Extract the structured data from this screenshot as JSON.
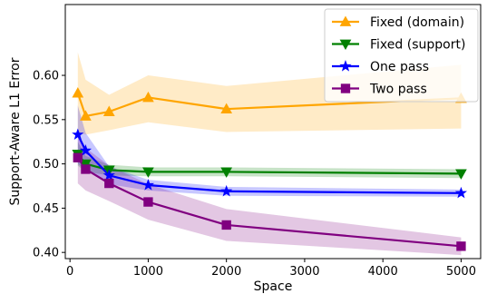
{
  "chart_data": {
    "type": "line",
    "title": "",
    "xlabel": "Space",
    "ylabel": "Support-Aware L1 Error",
    "xlim": [
      -60,
      5250
    ],
    "ylim": [
      0.393,
      0.68
    ],
    "xticks": [
      0,
      1000,
      2000,
      3000,
      4000,
      5000
    ],
    "xtick_labels": [
      "0",
      "1000",
      "2000",
      "3000",
      "4000",
      "5000"
    ],
    "yticks": [
      0.4,
      0.45,
      0.5,
      0.55,
      0.6
    ],
    "ytick_labels": [
      "0.40",
      "0.45",
      "0.50",
      "0.55",
      "0.60"
    ],
    "grid": false,
    "legend_position": "top-right",
    "x": [
      100,
      200,
      500,
      1000,
      2000,
      5000
    ],
    "series": [
      {
        "name": "Fixed (domain)",
        "color": "#ffa500",
        "marker": "triangle-up",
        "values": [
          0.58,
          0.554,
          0.559,
          0.575,
          0.562,
          0.574
        ],
        "lower": [
          0.535,
          0.533,
          0.538,
          0.547,
          0.536,
          0.54
        ],
        "upper": [
          0.626,
          0.595,
          0.578,
          0.6,
          0.588,
          0.612
        ]
      },
      {
        "name": "Fixed (support)",
        "color": "#008000",
        "marker": "triangle-down",
        "values": [
          0.511,
          0.5,
          0.493,
          0.491,
          0.491,
          0.489
        ],
        "lower": [
          0.498,
          0.491,
          0.487,
          0.486,
          0.486,
          0.484
        ],
        "upper": [
          0.525,
          0.509,
          0.499,
          0.496,
          0.496,
          0.494
        ]
      },
      {
        "name": "One pass",
        "color": "#0000ff",
        "marker": "star",
        "values": [
          0.533,
          0.515,
          0.487,
          0.476,
          0.469,
          0.467
        ],
        "lower": [
          0.5,
          0.493,
          0.477,
          0.47,
          0.464,
          0.463
        ],
        "upper": [
          0.566,
          0.535,
          0.497,
          0.482,
          0.474,
          0.471
        ]
      },
      {
        "name": "Two pass",
        "color": "#800080",
        "marker": "square",
        "values": [
          0.507,
          0.494,
          0.478,
          0.457,
          0.431,
          0.407
        ],
        "lower": [
          0.478,
          0.47,
          0.458,
          0.437,
          0.413,
          0.397
        ],
        "upper": [
          0.536,
          0.518,
          0.498,
          0.477,
          0.449,
          0.417
        ]
      }
    ]
  }
}
